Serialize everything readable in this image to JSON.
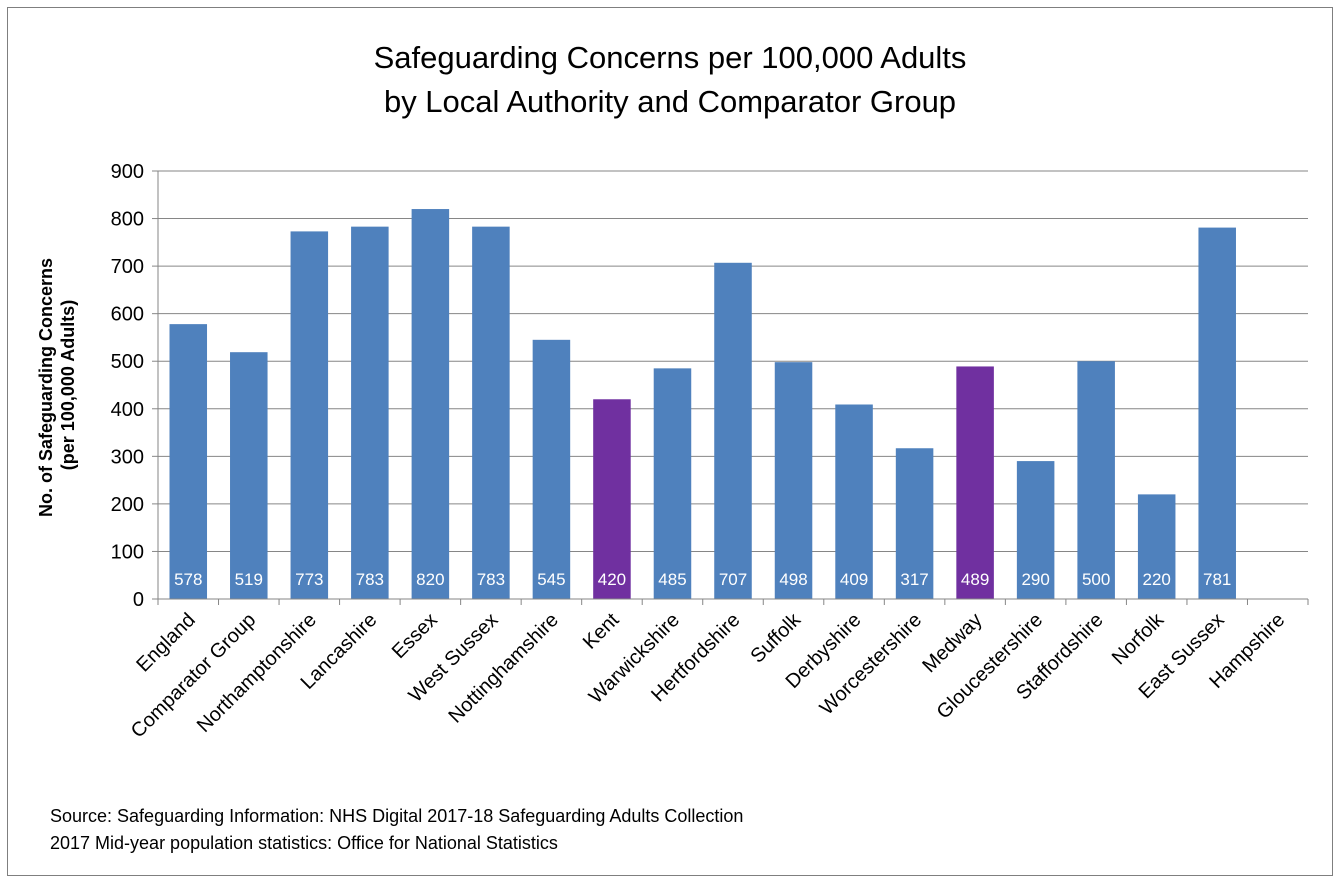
{
  "chart_data": {
    "type": "bar",
    "title_lines": [
      "Safeguarding Concerns per 100,000 Adults",
      "by Local Authority and Comparator Group"
    ],
    "ylabel_lines": [
      "No. of Safeguarding Concerns",
      "(per 100,000 Adults)"
    ],
    "xlabel": "",
    "ylim": [
      0,
      900
    ],
    "yticks": [
      0,
      100,
      200,
      300,
      400,
      500,
      600,
      700,
      800,
      900
    ],
    "grid": true,
    "categories": [
      "England",
      "Comparator Group",
      "Northamptonshire",
      "Lancashire",
      "Essex",
      "West Sussex",
      "Nottinghamshire",
      "Kent",
      "Warwickshire",
      "Hertfordshire",
      "Suffolk",
      "Derbyshire",
      "Worcestershire",
      "Medway",
      "Gloucestershire",
      "Staffordshire",
      "Norfolk",
      "East Sussex",
      "Hampshire"
    ],
    "values": [
      578,
      519,
      773,
      783,
      820,
      783,
      545,
      420,
      485,
      707,
      498,
      409,
      317,
      489,
      290,
      500,
      220,
      781,
      null
    ],
    "data_labels": [
      "578",
      "519",
      "773",
      "783",
      "820",
      "783",
      "545",
      "420",
      "485",
      "707",
      "498",
      "409",
      "317",
      "489",
      "290",
      "500",
      "220",
      "781",
      ""
    ],
    "highlight": [
      "Kent",
      "Medway"
    ],
    "colors": {
      "default_bar": "#4f81bd",
      "highlight_bar": "#7030a0",
      "gridline": "#868686",
      "data_label": "#ffffff"
    }
  },
  "source_notes": [
    "Source: Safeguarding Information:  NHS Digital 2017-18 Safeguarding Adults Collection",
    "2017 Mid-year population statistics: Office for National Statistics"
  ]
}
